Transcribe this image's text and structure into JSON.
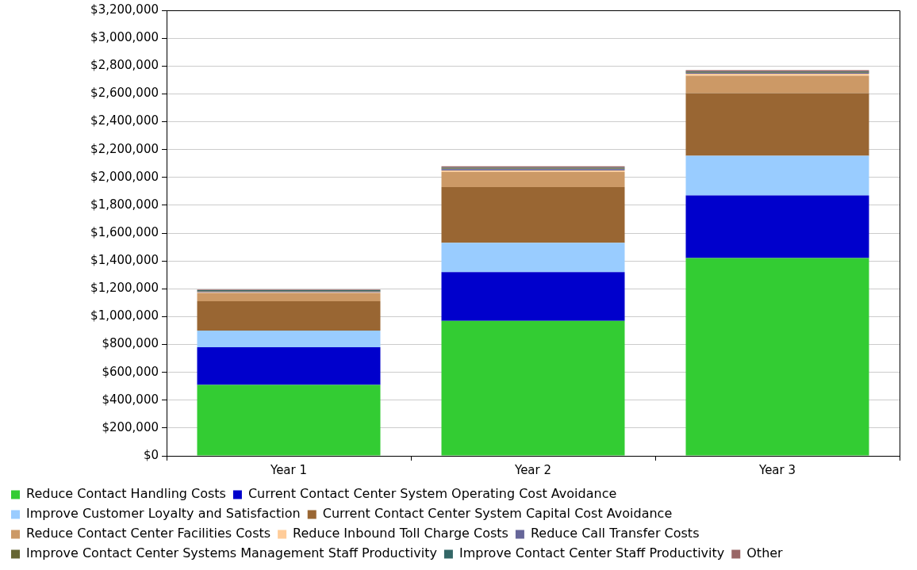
{
  "chart_data": {
    "type": "bar",
    "stacked": true,
    "categories": [
      "Year 1",
      "Year 2",
      "Year 3"
    ],
    "series": [
      {
        "name": "Reduce Contact Handling Costs",
        "color": "#33cc33",
        "values": [
          510000,
          970000,
          1420000
        ]
      },
      {
        "name": "Current Contact Center System Operating Cost Avoidance",
        "color": "#0000cc",
        "values": [
          270000,
          350000,
          450000
        ]
      },
      {
        "name": "Improve Customer Loyalty and Satisfaction",
        "color": "#99ccff",
        "values": [
          120000,
          210000,
          285000
        ]
      },
      {
        "name": "Current Contact Center System Capital Cost Avoidance",
        "color": "#996633",
        "values": [
          210000,
          400000,
          450000
        ]
      },
      {
        "name": "Reduce Contact Center Facilities Costs",
        "color": "#cc9966",
        "values": [
          60000,
          110000,
          125000
        ]
      },
      {
        "name": "Reduce Inbound Toll Charge Costs",
        "color": "#ffcc99",
        "values": [
          5000,
          10000,
          15000
        ]
      },
      {
        "name": "Reduce Call Transfer Costs",
        "color": "#666699",
        "values": [
          5000,
          10000,
          5000
        ]
      },
      {
        "name": "Improve Contact Center Systems Management Staff Productivity",
        "color": "#666633",
        "values": [
          5000,
          5000,
          5000
        ]
      },
      {
        "name": "Improve Contact Center Staff Productivity",
        "color": "#336666",
        "values": [
          5000,
          5000,
          5000
        ]
      },
      {
        "name": "Other",
        "color": "#996666",
        "values": [
          5000,
          10000,
          10000
        ]
      }
    ],
    "ylim": [
      0,
      3200000
    ],
    "yticks": [
      {
        "value": 0,
        "label": "$0"
      },
      {
        "value": 200000,
        "label": "$200,000"
      },
      {
        "value": 400000,
        "label": "$400,000"
      },
      {
        "value": 600000,
        "label": "$600,000"
      },
      {
        "value": 800000,
        "label": "$800,000"
      },
      {
        "value": 1000000,
        "label": "$1,000,000"
      },
      {
        "value": 1200000,
        "label": "$1,200,000"
      },
      {
        "value": 1400000,
        "label": "$1,400,000"
      },
      {
        "value": 1600000,
        "label": "$1,600,000"
      },
      {
        "value": 1800000,
        "label": "$1,800,000"
      },
      {
        "value": 2000000,
        "label": "$2,000,000"
      },
      {
        "value": 2200000,
        "label": "$2,200,000"
      },
      {
        "value": 2400000,
        "label": "$2,400,000"
      },
      {
        "value": 2600000,
        "label": "$2,600,000"
      },
      {
        "value": 2800000,
        "label": "$2,800,000"
      },
      {
        "value": 3000000,
        "label": "$3,000,000"
      },
      {
        "value": 3200000,
        "label": "$3,200,000"
      }
    ],
    "grid": "y",
    "legend": "bottom left"
  }
}
